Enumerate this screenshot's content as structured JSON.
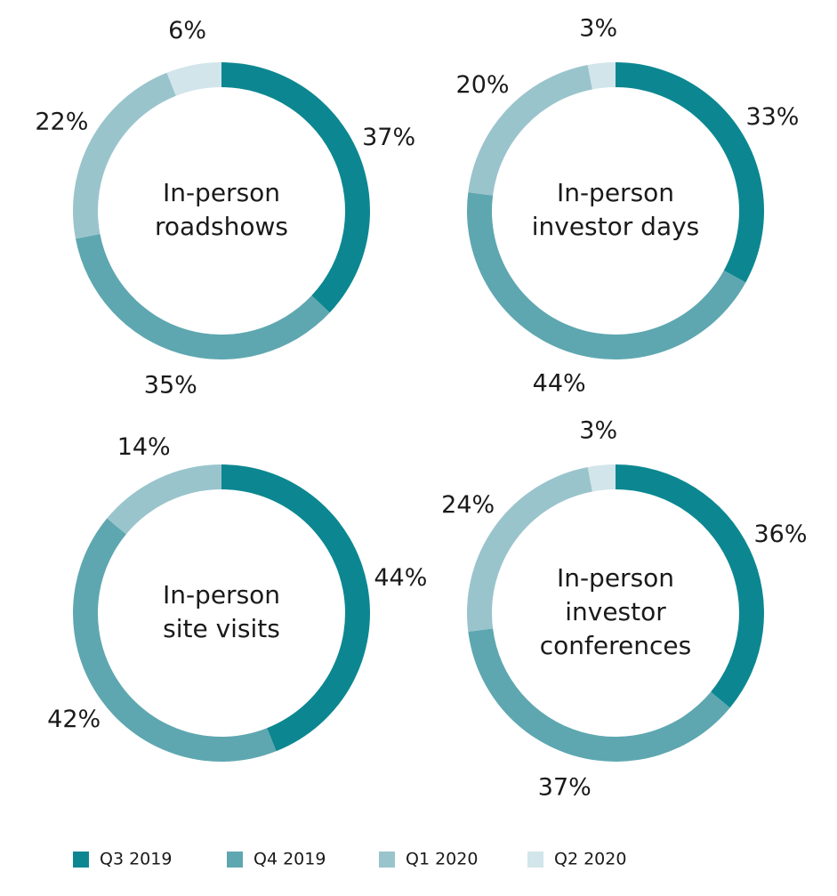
{
  "chart_data": [
    {
      "type": "pie",
      "center_label": [
        "In-person",
        "roadshows"
      ],
      "categories": [
        "Q3 2019",
        "Q4 2019",
        "Q1 2020",
        "Q2 2020"
      ],
      "values": [
        37,
        35,
        22,
        6
      ],
      "value_labels": [
        "37%",
        "35%",
        "22%",
        "6%"
      ]
    },
    {
      "type": "pie",
      "center_label": [
        "In-person",
        "investor days"
      ],
      "categories": [
        "Q3 2019",
        "Q4 2019",
        "Q1 2020",
        "Q2 2020"
      ],
      "values": [
        33,
        44,
        20,
        3
      ],
      "value_labels": [
        "33%",
        "44%",
        "20%",
        "3%"
      ]
    },
    {
      "type": "pie",
      "center_label": [
        "In-person",
        "site visits"
      ],
      "categories": [
        "Q3 2019",
        "Q4 2019",
        "Q1 2020",
        "Q2 2020"
      ],
      "values": [
        44,
        42,
        14,
        0
      ],
      "value_labels": [
        "44%",
        "42%",
        "14%",
        ""
      ]
    },
    {
      "type": "pie",
      "center_label": [
        "In-person",
        "investor",
        "conferences"
      ],
      "categories": [
        "Q3 2019",
        "Q4 2019",
        "Q1 2020",
        "Q2 2020"
      ],
      "values": [
        36,
        37,
        24,
        3
      ],
      "value_labels": [
        "36%",
        "37%",
        "24%",
        "3%"
      ]
    }
  ],
  "legend": {
    "placement": "bottom",
    "items": [
      {
        "label": "Q3 2019",
        "color": "#0c8791"
      },
      {
        "label": "Q4 2019",
        "color": "#5ea7b0"
      },
      {
        "label": "Q1 2020",
        "color": "#9ac4cc"
      },
      {
        "label": "Q2 2020",
        "color": "#d2e5ea"
      }
    ]
  }
}
